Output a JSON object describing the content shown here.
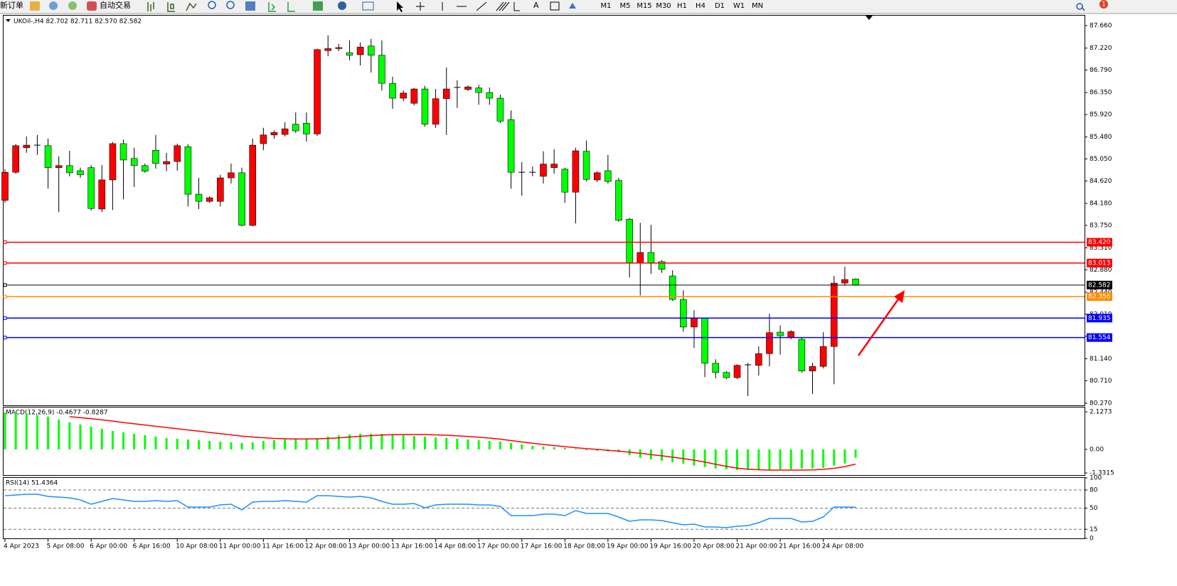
{
  "toolbar": {
    "new_order": "新订单",
    "auto_trading": "自动交易",
    "periods": [
      "M1",
      "M5",
      "M15",
      "M30",
      "H1",
      "H4",
      "D1",
      "W1",
      "MN"
    ],
    "notifications": 1
  },
  "chart_data": [
    {
      "type": "candlestick",
      "title": "UKOil-,H4 82.702 82.711 82.570 82.582",
      "categories": [
        "4 Apr 2023",
        null,
        null,
        null,
        "5 Apr 08:00",
        null,
        null,
        null,
        "6 Apr 00:00",
        null,
        null,
        null,
        "6 Apr 16:00",
        null,
        null,
        null,
        "10 Apr 08:00",
        null,
        null,
        null,
        "11 Apr 00:00",
        null,
        null,
        null,
        "11 Apr 16:00",
        null,
        null,
        null,
        "12 Apr 08:00",
        null,
        null,
        null,
        "13 Apr 00:00",
        null,
        null,
        null,
        "13 Apr 16:00",
        null,
        null,
        null,
        "14 Apr 08:00",
        null,
        null,
        null,
        "17 Apr 00:00",
        null,
        null,
        null,
        "17 Apr 16:00",
        null,
        null,
        null,
        "18 Apr 08:00",
        null,
        null,
        null,
        "19 Apr 00:00",
        null,
        null,
        null,
        "19 Apr 16:00",
        null,
        null,
        null,
        "20 Apr 08:00",
        null,
        null,
        null,
        "21 Apr 00:00",
        null,
        null,
        null,
        "21 Apr 16:00",
        null,
        null,
        null,
        "24 Apr 08:00",
        null,
        null,
        null
      ],
      "open": [
        84.24,
        84.79,
        85.27,
        85.32,
        85.31,
        84.88,
        84.92,
        84.82,
        84.88,
        84.07,
        84.64,
        85.35,
        85.06,
        84.92,
        85.22,
        84.95,
        85.0,
        85.29,
        84.36,
        84.22,
        84.22,
        84.68,
        84.78,
        83.75,
        85.35,
        85.52,
        85.53,
        85.73,
        85.75,
        85.54,
        87.17,
        87.21,
        87.13,
        87.09,
        87.26,
        87.08,
        86.53,
        86.24,
        86.14,
        86.42,
        85.73,
        86.23,
        86.45,
        86.41,
        86.44,
        86.35,
        86.24,
        85.82,
        84.79,
        84.79,
        84.71,
        84.88,
        84.85,
        84.4,
        85.2,
        84.64,
        84.82,
        84.63,
        83.87,
        83.02,
        83.22,
        83.04,
        82.76,
        82.3,
        81.76,
        81.93,
        81.05,
        80.87,
        80.77,
        81.02,
        81.01,
        81.24,
        81.66,
        81.56,
        81.52,
        80.9,
        80.99,
        81.38,
        82.62,
        82.7
      ],
      "high": [
        84.85,
        85.34,
        85.49,
        85.52,
        85.45,
        85.1,
        85.21,
        84.88,
        84.93,
        84.93,
        85.38,
        85.43,
        85.27,
        84.96,
        85.52,
        85.17,
        85.35,
        85.34,
        84.68,
        84.32,
        84.74,
        84.96,
        84.88,
        85.45,
        85.66,
        85.61,
        85.77,
        85.96,
        85.96,
        87.21,
        87.47,
        87.3,
        87.37,
        87.33,
        87.4,
        87.37,
        86.66,
        86.39,
        86.44,
        86.48,
        86.42,
        86.84,
        86.59,
        86.49,
        86.5,
        86.45,
        86.31,
        86.0,
        84.99,
        84.9,
        85.2,
        85.24,
        84.88,
        85.27,
        85.41,
        84.81,
        85.13,
        84.68,
        83.9,
        83.8,
        83.76,
        83.07,
        82.87,
        82.48,
        82.09,
        81.94,
        81.13,
        80.9,
        81.03,
        81.06,
        81.38,
        82.02,
        81.79,
        81.7,
        81.55,
        81.06,
        81.66,
        82.76,
        82.94,
        82.71
      ],
      "low": [
        84.19,
        84.76,
        85.17,
        85.13,
        84.47,
        84.01,
        84.71,
        84.68,
        84.04,
        84.01,
        84.05,
        84.26,
        84.5,
        84.78,
        84.86,
        84.81,
        84.82,
        84.12,
        84.07,
        84.19,
        84.12,
        84.57,
        83.73,
        83.73,
        85.22,
        85.45,
        85.49,
        85.56,
        85.39,
        85.5,
        87.06,
        87.16,
        86.98,
        86.88,
        86.74,
        86.39,
        86.03,
        86.18,
        86.1,
        85.68,
        85.66,
        85.52,
        86.05,
        86.38,
        86.11,
        86.11,
        85.75,
        84.47,
        84.33,
        84.71,
        84.57,
        84.76,
        84.19,
        83.79,
        84.61,
        84.6,
        84.57,
        83.82,
        82.73,
        82.38,
        82.8,
        82.82,
        82.27,
        81.67,
        81.35,
        80.78,
        80.76,
        80.74,
        80.74,
        80.41,
        80.81,
        80.99,
        81.22,
        81.52,
        80.87,
        80.45,
        80.95,
        80.64,
        82.57,
        82.57
      ],
      "close": [
        84.79,
        85.31,
        85.32,
        85.32,
        84.88,
        84.92,
        84.78,
        84.74,
        84.08,
        84.64,
        85.35,
        85.03,
        84.92,
        84.81,
        84.96,
        85.0,
        85.31,
        84.36,
        84.22,
        84.29,
        84.68,
        84.78,
        83.75,
        85.32,
        85.52,
        85.57,
        85.64,
        85.6,
        85.54,
        87.19,
        87.21,
        87.23,
        87.08,
        87.24,
        87.08,
        86.53,
        86.24,
        86.34,
        86.42,
        85.73,
        86.23,
        86.42,
        86.45,
        86.46,
        86.35,
        86.24,
        85.79,
        84.79,
        84.79,
        84.79,
        84.95,
        84.95,
        84.4,
        85.21,
        84.65,
        84.78,
        84.61,
        83.85,
        83.02,
        83.22,
        83.02,
        82.89,
        82.3,
        81.76,
        81.93,
        81.05,
        80.87,
        80.77,
        81.01,
        81.02,
        81.24,
        81.65,
        81.59,
        81.67,
        80.9,
        80.99,
        81.38,
        82.62,
        82.69,
        82.58
      ],
      "up_color": "#ff0000",
      "down_color": "#00ff00",
      "ylim": [
        80.227,
        87.855
      ],
      "yticks": [
        {
          "value": 87.66,
          "label": "87.660"
        },
        {
          "value": 87.22,
          "label": "87.220"
        },
        {
          "value": 86.79,
          "label": "86.790"
        },
        {
          "value": 86.35,
          "label": "86.350"
        },
        {
          "value": 85.92,
          "label": "85.920"
        },
        {
          "value": 85.48,
          "label": "85.480"
        },
        {
          "value": 85.05,
          "label": "85.050"
        },
        {
          "value": 84.62,
          "label": "84.620"
        },
        {
          "value": 84.18,
          "label": "84.180"
        },
        {
          "value": 83.75,
          "label": "83.750"
        },
        {
          "value": 83.31,
          "label": "83.310"
        },
        {
          "value": 82.88,
          "label": "82.880"
        },
        {
          "value": 82.44,
          "label": "82.440"
        },
        {
          "value": 82.01,
          "label": "82.010"
        },
        {
          "value": 81.58,
          "label": "81.580"
        },
        {
          "value": 81.14,
          "label": "81.140"
        },
        {
          "value": 80.71,
          "label": "80.710"
        },
        {
          "value": 80.27,
          "label": "80.270"
        }
      ],
      "hlines": [
        {
          "value": 83.42,
          "label": "83.420",
          "color": "#ff0000"
        },
        {
          "value": 83.013,
          "label": "83.013",
          "color": "#ff0000"
        },
        {
          "value": 82.582,
          "label": "82.582",
          "color": "#000000"
        },
        {
          "value": 82.356,
          "label": "82.356",
          "color": "#ff8c00"
        },
        {
          "value": 81.935,
          "label": "81.935",
          "color": "#0000ff"
        },
        {
          "value": 81.554,
          "label": "81.554",
          "color": "#0000ff"
        }
      ]
    },
    {
      "type": "macd",
      "title": "MACD(12,26,9) -0.4677 -0.8287",
      "histogram": {
        "color": "#00ff00",
        "values": [
          2.09,
          2.09,
          2.01,
          1.93,
          1.85,
          1.69,
          1.53,
          1.41,
          1.29,
          1.16,
          1.04,
          0.96,
          0.88,
          0.8,
          0.72,
          0.64,
          0.6,
          0.56,
          0.52,
          0.48,
          0.44,
          0.4,
          0.36,
          0.4,
          0.48,
          0.52,
          0.56,
          0.6,
          0.6,
          0.64,
          0.72,
          0.8,
          0.84,
          0.88,
          0.88,
          0.88,
          0.84,
          0.8,
          0.76,
          0.72,
          0.68,
          0.64,
          0.6,
          0.56,
          0.52,
          0.48,
          0.44,
          0.36,
          0.28,
          0.2,
          0.16,
          0.12,
          0.08,
          0.04,
          -0.04,
          -0.08,
          -0.12,
          -0.16,
          -0.32,
          -0.48,
          -0.56,
          -0.64,
          -0.72,
          -0.8,
          -0.92,
          -1.0,
          -1.08,
          -1.12,
          -1.16,
          -1.16,
          -1.16,
          -1.16,
          -1.12,
          -1.12,
          -1.08,
          -1.08,
          -1.04,
          -0.92,
          -0.8,
          -0.47
        ]
      },
      "signal": {
        "color": "#ff0000",
        "values": [
          null,
          null,
          null,
          null,
          null,
          null,
          1.85,
          1.8,
          1.74,
          1.67,
          1.6,
          1.52,
          1.45,
          1.38,
          1.31,
          1.24,
          1.17,
          1.1,
          1.03,
          0.96,
          0.89,
          0.82,
          0.75,
          0.7,
          0.66,
          0.62,
          0.6,
          0.59,
          0.59,
          0.6,
          0.62,
          0.65,
          0.7,
          0.74,
          0.78,
          0.81,
          0.83,
          0.84,
          0.84,
          0.84,
          0.82,
          0.8,
          0.77,
          0.73,
          0.69,
          0.64,
          0.58,
          0.5,
          0.42,
          0.35,
          0.28,
          0.22,
          0.16,
          0.1,
          0.04,
          0.0,
          -0.05,
          -0.1,
          -0.16,
          -0.22,
          -0.29,
          -0.36,
          -0.44,
          -0.52,
          -0.61,
          -0.72,
          -0.84,
          -0.96,
          -1.06,
          -1.12,
          -1.15,
          -1.17,
          -1.17,
          -1.17,
          -1.17,
          -1.16,
          -1.13,
          -1.07,
          -0.97,
          -0.83
        ]
      },
      "ylim": [
        -1.45,
        2.37
      ],
      "yticks": [
        2.1273,
        {
          "value": 0,
          "label": "0.00"
        },
        -1.3315
      ]
    },
    {
      "type": "line",
      "title": "RSI(14) 51.4364",
      "color": "#1e90ff",
      "values": [
        70.6,
        71.8,
        72.9,
        72.9,
        69.4,
        68.2,
        67.1,
        63.5,
        56.5,
        61.2,
        65.9,
        63.5,
        61.2,
        61.2,
        62.4,
        61.2,
        62.4,
        51.8,
        51.8,
        51.8,
        55.3,
        56.5,
        47.1,
        60.0,
        61.2,
        61.2,
        62.4,
        61.2,
        60.0,
        70.6,
        70.6,
        69.4,
        68.2,
        69.4,
        67.1,
        61.2,
        56.5,
        56.5,
        57.6,
        50.6,
        55.3,
        56.5,
        56.5,
        56.5,
        55.3,
        55.3,
        52.9,
        37.6,
        37.6,
        37.6,
        40.0,
        40.0,
        37.6,
        45.9,
        41.2,
        41.2,
        41.2,
        35.3,
        28.2,
        30.6,
        30.6,
        29.4,
        25.9,
        22.4,
        23.5,
        18.8,
        18.8,
        17.6,
        20.0,
        21.2,
        25.9,
        32.9,
        32.9,
        32.9,
        27.1,
        28.2,
        35.3,
        51.8,
        51.8,
        51.44
      ],
      "ylim": [
        0,
        100
      ],
      "yticks": [
        100,
        80,
        50,
        15,
        0
      ],
      "levels": [
        80,
        50,
        15
      ]
    }
  ]
}
